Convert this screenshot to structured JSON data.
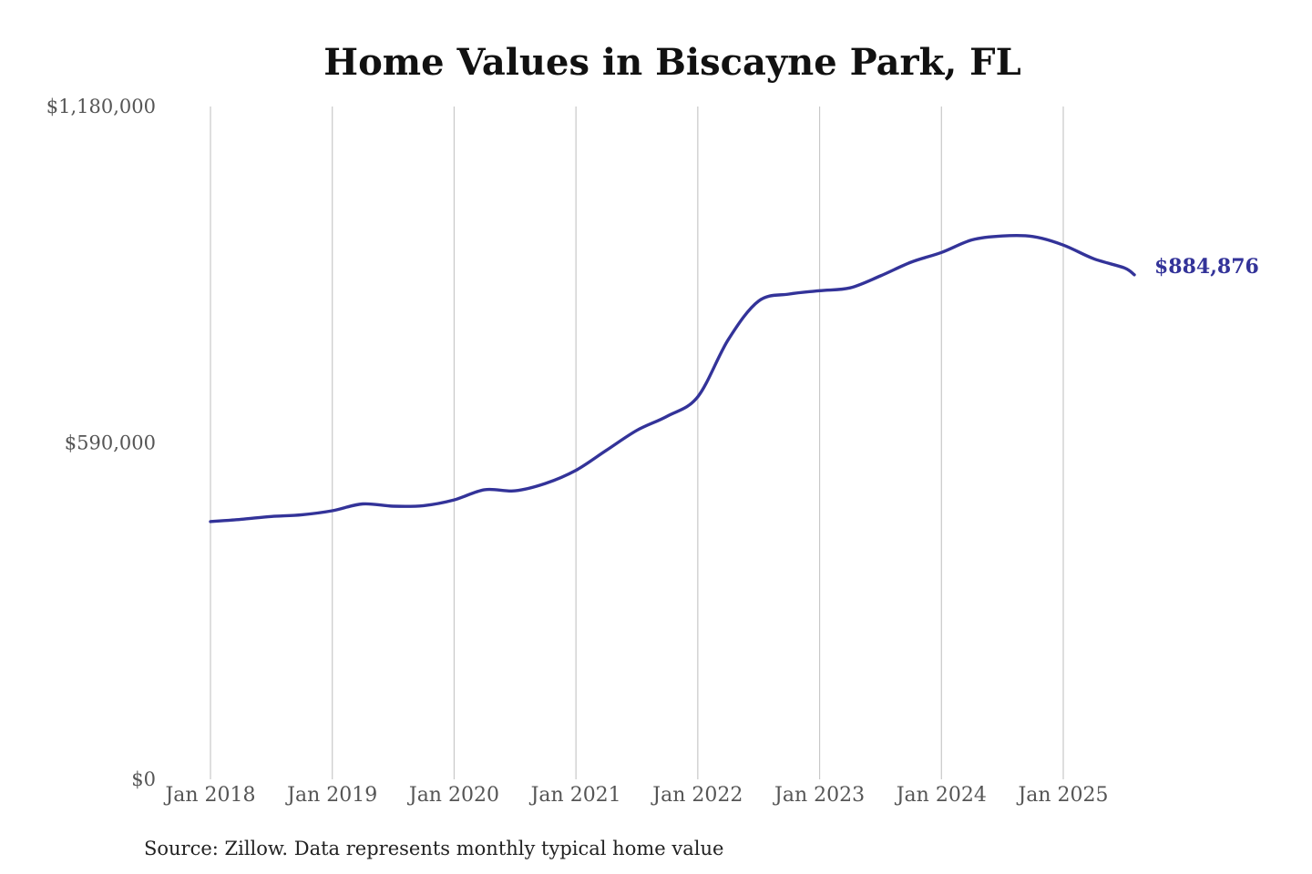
{
  "chart_data": {
    "type": "line",
    "title": "Home Values in Biscayne Park, FL",
    "xlabel": "",
    "ylabel": "",
    "y_ticks": [
      "$1,180,000",
      "$590,000",
      "$0"
    ],
    "y_tick_values": [
      1180000,
      590000,
      0
    ],
    "ylim": [
      0,
      1180000
    ],
    "x_ticks": [
      "Jan 2018",
      "Jan 2019",
      "Jan 2020",
      "Jan 2021",
      "Jan 2022",
      "Jan 2023",
      "Jan 2024",
      "Jan 2025"
    ],
    "xlim": [
      "2018-01",
      "2025-08"
    ],
    "grid": "vertical gridlines at January of each year",
    "legend": "none",
    "series": [
      {
        "color": "#333399",
        "end_label": "$884,876",
        "points": [
          [
            "2018-01",
            452000
          ],
          [
            "2018-04",
            456000
          ],
          [
            "2018-07",
            461000
          ],
          [
            "2018-10",
            464000
          ],
          [
            "2019-01",
            471000
          ],
          [
            "2019-04",
            483000
          ],
          [
            "2019-07",
            479000
          ],
          [
            "2019-10",
            480000
          ],
          [
            "2020-01",
            490000
          ],
          [
            "2020-04",
            508000
          ],
          [
            "2020-07",
            506000
          ],
          [
            "2020-10",
            519000
          ],
          [
            "2021-01",
            542000
          ],
          [
            "2021-04",
            577000
          ],
          [
            "2021-07",
            612000
          ],
          [
            "2021-10",
            637000
          ],
          [
            "2022-01",
            671000
          ],
          [
            "2022-04",
            771000
          ],
          [
            "2022-07",
            839000
          ],
          [
            "2022-10",
            851000
          ],
          [
            "2023-01",
            857000
          ],
          [
            "2023-04",
            862000
          ],
          [
            "2023-07",
            883000
          ],
          [
            "2023-10",
            907000
          ],
          [
            "2024-01",
            924000
          ],
          [
            "2024-04",
            946000
          ],
          [
            "2024-07",
            953000
          ],
          [
            "2024-10",
            952000
          ],
          [
            "2025-01",
            937000
          ],
          [
            "2025-04",
            913000
          ],
          [
            "2025-07",
            897000
          ],
          [
            "2025-08",
            884876
          ]
        ]
      }
    ]
  },
  "source_note": "Source: Zillow. Data represents monthly typical home value"
}
